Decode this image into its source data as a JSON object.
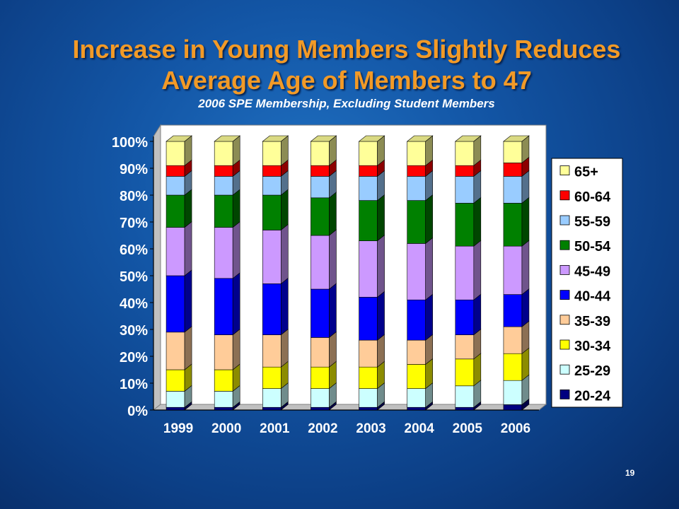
{
  "slide": {
    "title_line1": "Increase in Young Members Slightly Reduces",
    "title_line2": "Average Age of Members to 47",
    "subtitle": "2006 SPE Membership, Excluding Student Members",
    "slide_number": "19"
  },
  "chart_data": {
    "type": "bar",
    "stacked": true,
    "style": "3d-stacked-percent",
    "categories": [
      "1999",
      "2000",
      "2001",
      "2002",
      "2003",
      "2004",
      "2005",
      "2006"
    ],
    "ylim": [
      0,
      100
    ],
    "yticks": [
      "0%",
      "10%",
      "20%",
      "30%",
      "40%",
      "50%",
      "60%",
      "70%",
      "80%",
      "90%",
      "100%"
    ],
    "legend_position": "right",
    "series": [
      {
        "name": "20-24",
        "color": "#000080",
        "values": [
          1,
          1,
          1,
          1,
          1,
          1,
          1,
          2
        ]
      },
      {
        "name": "25-29",
        "color": "#ccffff",
        "values": [
          6,
          6,
          7,
          7,
          7,
          7,
          8,
          9
        ]
      },
      {
        "name": "30-34",
        "color": "#ffff00",
        "values": [
          8,
          8,
          8,
          8,
          8,
          9,
          10,
          10
        ]
      },
      {
        "name": "35-39",
        "color": "#ffcc99",
        "values": [
          14,
          13,
          12,
          11,
          10,
          9,
          9,
          10
        ]
      },
      {
        "name": "40-44",
        "color": "#0000ff",
        "values": [
          21,
          21,
          19,
          18,
          16,
          15,
          13,
          12
        ]
      },
      {
        "name": "45-49",
        "color": "#cc99ff",
        "values": [
          18,
          19,
          20,
          20,
          21,
          21,
          20,
          18
        ]
      },
      {
        "name": "50-54",
        "color": "#008000",
        "values": [
          12,
          12,
          13,
          14,
          15,
          16,
          16,
          16
        ]
      },
      {
        "name": "55-59",
        "color": "#99ccff",
        "values": [
          7,
          7,
          7,
          8,
          9,
          9,
          10,
          10
        ]
      },
      {
        "name": "60-64",
        "color": "#ff0000",
        "values": [
          4,
          4,
          4,
          4,
          4,
          4,
          4,
          5
        ]
      },
      {
        "name": "65+",
        "color": "#ffff99",
        "values": [
          9,
          9,
          9,
          9,
          9,
          9,
          9,
          8
        ]
      }
    ]
  }
}
